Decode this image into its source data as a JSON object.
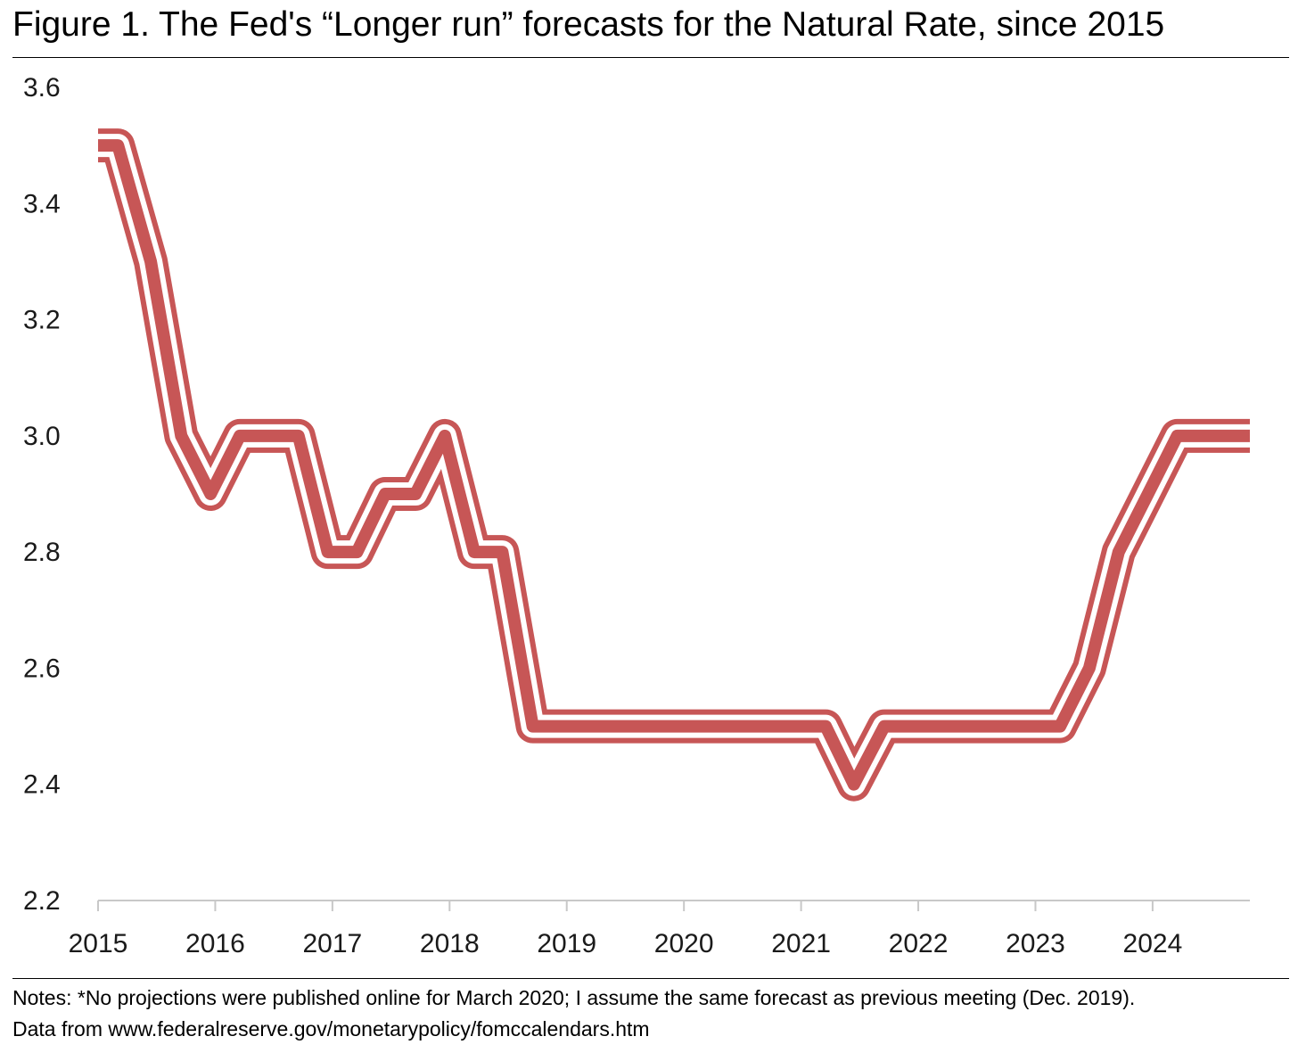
{
  "title": "Figure 1. The Fed's “Longer run” forecasts for the Natural Rate, since 2015",
  "notes": {
    "line1": "Notes: *No projections were published online for March 2020; I assume the same forecast as previous meeting (Dec. 2019).",
    "line2": "Data from www.federalreserve.gov/monetarypolicy/fomccalendars.htm"
  },
  "colors": {
    "line": "#c75656",
    "axis": "#c8c8c8"
  },
  "chart_data": {
    "type": "line",
    "title": "Figure 1. The Fed's “Longer run” forecasts for the Natural Rate, since 2015",
    "xlabel": "",
    "ylabel": "",
    "xlim": [
      2015,
      2024.83
    ],
    "ylim": [
      2.2,
      3.6
    ],
    "x_ticks": [
      2015,
      2016,
      2017,
      2018,
      2019,
      2020,
      2021,
      2022,
      2023,
      2024
    ],
    "y_ticks": [
      2.2,
      2.4,
      2.6,
      2.8,
      3.0,
      3.2,
      3.4,
      3.6
    ],
    "y_tick_labels": [
      "2.2",
      "2.4",
      "2.6",
      "2.8",
      "3.0",
      "3.2",
      "3.4",
      "3.6"
    ],
    "grid": false,
    "legend": "none",
    "series": [
      {
        "x": [
          2015.0,
          2015.17,
          2015.45,
          2015.71,
          2015.96,
          2016.21,
          2016.46,
          2016.71,
          2016.96,
          2017.21,
          2017.45,
          2017.71,
          2017.96,
          2018.21,
          2018.45,
          2018.71,
          2018.96,
          2019.21,
          2019.46,
          2019.71,
          2019.96,
          2020.21,
          2020.46,
          2020.71,
          2020.96,
          2021.21,
          2021.45,
          2021.71,
          2021.96,
          2022.21,
          2022.46,
          2022.71,
          2022.96,
          2023.21,
          2023.46,
          2023.71,
          2023.96,
          2024.21,
          2024.46,
          2024.71,
          2024.83
        ],
        "y": [
          3.5,
          3.5,
          3.3,
          3.0,
          2.9,
          3.0,
          3.0,
          3.0,
          2.8,
          2.8,
          2.9,
          2.9,
          3.0,
          2.8,
          2.8,
          2.5,
          2.5,
          2.5,
          2.5,
          2.5,
          2.5,
          2.5,
          2.5,
          2.5,
          2.5,
          2.5,
          2.4,
          2.5,
          2.5,
          2.5,
          2.5,
          2.5,
          2.5,
          2.5,
          2.6,
          2.8,
          2.9,
          3.0,
          3.0,
          3.0,
          3.0
        ]
      }
    ]
  }
}
